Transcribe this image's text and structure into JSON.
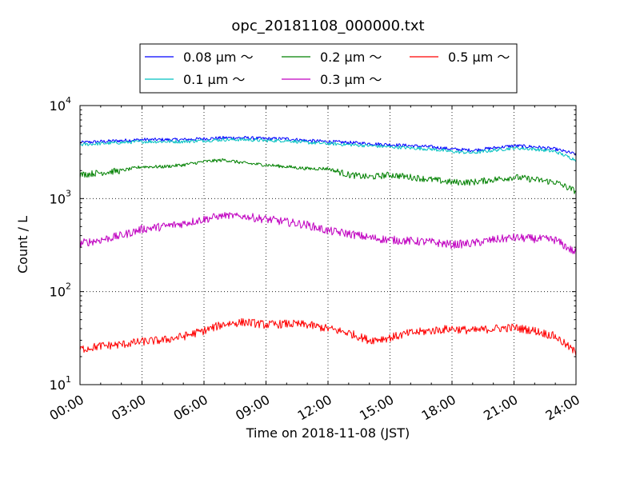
{
  "chart_data": {
    "type": "line",
    "title": "opc_20181108_000000.txt",
    "xlabel": "Time on 2018-11-08 (JST)",
    "ylabel": "Count / L",
    "xlim": [
      "00:00",
      "24:00"
    ],
    "ylim": [
      10,
      10000
    ],
    "yscale": "log",
    "grid": true,
    "legend_position": "top",
    "x_ticks": [
      "00:00",
      "03:00",
      "06:00",
      "09:00",
      "12:00",
      "15:00",
      "18:00",
      "21:00",
      "24:00"
    ],
    "y_ticks": [
      {
        "value": 10,
        "base": "10",
        "exp": "1"
      },
      {
        "value": 100,
        "base": "10",
        "exp": "2"
      },
      {
        "value": 1000,
        "base": "10",
        "exp": "3"
      },
      {
        "value": 10000,
        "base": "10",
        "exp": "4"
      }
    ],
    "x": [
      "00:00",
      "01:00",
      "02:00",
      "03:00",
      "04:00",
      "05:00",
      "06:00",
      "07:00",
      "08:00",
      "09:00",
      "10:00",
      "11:00",
      "12:00",
      "13:00",
      "14:00",
      "15:00",
      "16:00",
      "17:00",
      "18:00",
      "19:00",
      "20:00",
      "21:00",
      "22:00",
      "23:00",
      "24:00"
    ],
    "series": [
      {
        "name": "0.08 μm ～",
        "color": "#0000ff",
        "values": [
          4000,
          4100,
          4200,
          4300,
          4300,
          4300,
          4400,
          4500,
          4500,
          4400,
          4400,
          4200,
          4100,
          4000,
          3900,
          3800,
          3700,
          3600,
          3400,
          3300,
          3500,
          3700,
          3600,
          3400,
          3000
        ]
      },
      {
        "name": "0.1 μm ～",
        "color": "#00c0c0",
        "values": [
          3800,
          3900,
          4000,
          4100,
          4100,
          4100,
          4200,
          4300,
          4300,
          4200,
          4200,
          4000,
          3900,
          3800,
          3700,
          3600,
          3500,
          3400,
          3200,
          3100,
          3300,
          3500,
          3400,
          3200,
          2600
        ]
      },
      {
        "name": "0.2 μm ～",
        "color": "#008000",
        "values": [
          1800,
          1900,
          2000,
          2200,
          2200,
          2300,
          2500,
          2600,
          2400,
          2300,
          2200,
          2100,
          2100,
          1800,
          1700,
          1800,
          1700,
          1600,
          1500,
          1500,
          1600,
          1700,
          1600,
          1500,
          1200
        ]
      },
      {
        "name": "0.3 μm ～",
        "color": "#c000c0",
        "values": [
          330,
          360,
          400,
          470,
          500,
          540,
          600,
          660,
          640,
          600,
          560,
          520,
          450,
          420,
          380,
          360,
          350,
          340,
          320,
          330,
          360,
          380,
          370,
          360,
          260
        ]
      },
      {
        "name": "0.5 μm ～",
        "color": "#ff0000",
        "values": [
          24,
          26,
          27,
          29,
          30,
          33,
          38,
          45,
          47,
          44,
          45,
          44,
          40,
          36,
          30,
          32,
          36,
          38,
          40,
          38,
          40,
          41,
          38,
          33,
          22
        ]
      }
    ]
  }
}
